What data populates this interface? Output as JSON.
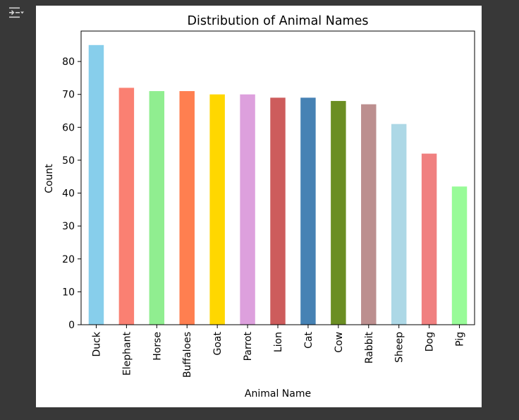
{
  "output_toggle": {
    "icon": "output-collapse-icon"
  },
  "chart_data": {
    "type": "bar",
    "title": "Distribution of Animal Names",
    "xlabel": "Animal Name",
    "ylabel": "Count",
    "categories": [
      "Duck",
      "Elephant",
      "Horse",
      "Buffaloes",
      "Goat",
      "Parrot",
      "Lion",
      "Cat",
      "Cow",
      "Rabbit",
      "Sheep",
      "Dog",
      "Pig"
    ],
    "values": [
      85,
      72,
      71,
      71,
      70,
      70,
      69,
      69,
      68,
      67,
      61,
      52,
      42
    ],
    "colors": [
      "#87ceeb",
      "#fa8072",
      "#90ee90",
      "#ff7f50",
      "#ffd700",
      "#dda0dd",
      "#cd5c5c",
      "#4682b4",
      "#6b8e23",
      "#bc8f8f",
      "#add8e6",
      "#f08080",
      "#98fb98"
    ],
    "yticks": [
      0,
      10,
      20,
      30,
      40,
      50,
      60,
      70,
      80
    ],
    "ylim": [
      0,
      89.25
    ],
    "grid": false,
    "legend": false
  }
}
